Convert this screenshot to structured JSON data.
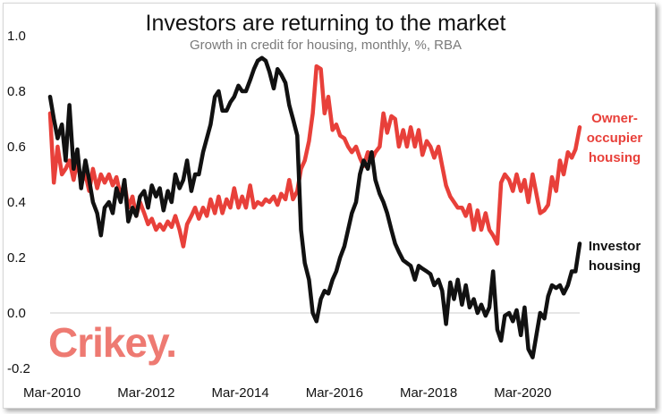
{
  "chart_data": {
    "type": "line",
    "title": "Investors are returning to the market",
    "subtitle": "Growth in credit for housing, monthly, %, RBA",
    "xlabel": "",
    "ylabel": "",
    "ylim": [
      -0.2,
      1.0
    ],
    "y_ticks": [
      "1.0",
      "0.8",
      "0.6",
      "0.4",
      "0.2",
      "0.0",
      "-0.2"
    ],
    "y_tick_values": [
      1.0,
      0.8,
      0.6,
      0.4,
      0.2,
      0.0,
      -0.2
    ],
    "xlim": [
      2010.17,
      2021.08
    ],
    "x_ticks": [
      "Mar-2010",
      "Mar-2012",
      "Mar-2014",
      "Mar-2016",
      "Mar-2018",
      "Mar-2020"
    ],
    "x_tick_values": [
      2010.17,
      2012.17,
      2014.17,
      2016.17,
      2018.17,
      2020.17
    ],
    "grid": false,
    "series": [
      {
        "name": "Owner-occupier housing",
        "label_lines": [
          "Owner-",
          "occupier",
          "housing"
        ],
        "color": "#e8403a",
        "points": [
          [
            2010.17,
            0.72
          ],
          [
            2010.25,
            0.47
          ],
          [
            2010.33,
            0.6
          ],
          [
            2010.42,
            0.5
          ],
          [
            2010.5,
            0.52
          ],
          [
            2010.58,
            0.55
          ],
          [
            2010.67,
            0.48
          ],
          [
            2010.75,
            0.55
          ],
          [
            2010.83,
            0.47
          ],
          [
            2010.92,
            0.5
          ],
          [
            2011.0,
            0.44
          ],
          [
            2011.08,
            0.52
          ],
          [
            2011.17,
            0.45
          ],
          [
            2011.25,
            0.5
          ],
          [
            2011.33,
            0.47
          ],
          [
            2011.42,
            0.5
          ],
          [
            2011.5,
            0.46
          ],
          [
            2011.58,
            0.49
          ],
          [
            2011.67,
            0.42
          ],
          [
            2011.75,
            0.47
          ],
          [
            2011.83,
            0.38
          ],
          [
            2011.92,
            0.42
          ],
          [
            2012.0,
            0.35
          ],
          [
            2012.08,
            0.4
          ],
          [
            2012.17,
            0.36
          ],
          [
            2012.25,
            0.32
          ],
          [
            2012.33,
            0.34
          ],
          [
            2012.42,
            0.3
          ],
          [
            2012.5,
            0.32
          ],
          [
            2012.58,
            0.3
          ],
          [
            2012.67,
            0.33
          ],
          [
            2012.75,
            0.31
          ],
          [
            2012.83,
            0.35
          ],
          [
            2012.92,
            0.3
          ],
          [
            2013.0,
            0.24
          ],
          [
            2013.08,
            0.32
          ],
          [
            2013.17,
            0.35
          ],
          [
            2013.25,
            0.38
          ],
          [
            2013.33,
            0.34
          ],
          [
            2013.42,
            0.38
          ],
          [
            2013.5,
            0.35
          ],
          [
            2013.58,
            0.41
          ],
          [
            2013.67,
            0.36
          ],
          [
            2013.75,
            0.42
          ],
          [
            2013.83,
            0.36
          ],
          [
            2013.92,
            0.41
          ],
          [
            2014.0,
            0.38
          ],
          [
            2014.08,
            0.45
          ],
          [
            2014.17,
            0.38
          ],
          [
            2014.25,
            0.42
          ],
          [
            2014.33,
            0.38
          ],
          [
            2014.42,
            0.46
          ],
          [
            2014.5,
            0.38
          ],
          [
            2014.58,
            0.4
          ],
          [
            2014.67,
            0.39
          ],
          [
            2014.75,
            0.41
          ],
          [
            2014.83,
            0.4
          ],
          [
            2014.92,
            0.42
          ],
          [
            2015.0,
            0.39
          ],
          [
            2015.08,
            0.43
          ],
          [
            2015.17,
            0.41
          ],
          [
            2015.25,
            0.48
          ],
          [
            2015.33,
            0.41
          ],
          [
            2015.42,
            0.44
          ],
          [
            2015.5,
            0.52
          ],
          [
            2015.58,
            0.55
          ],
          [
            2015.67,
            0.62
          ],
          [
            2015.75,
            0.72
          ],
          [
            2015.83,
            0.89
          ],
          [
            2015.92,
            0.88
          ],
          [
            2016.0,
            0.72
          ],
          [
            2016.08,
            0.78
          ],
          [
            2016.17,
            0.66
          ],
          [
            2016.25,
            0.68
          ],
          [
            2016.33,
            0.64
          ],
          [
            2016.42,
            0.63
          ],
          [
            2016.5,
            0.6
          ],
          [
            2016.58,
            0.58
          ],
          [
            2016.67,
            0.6
          ],
          [
            2016.75,
            0.56
          ],
          [
            2016.83,
            0.53
          ],
          [
            2016.92,
            0.58
          ],
          [
            2017.0,
            0.55
          ],
          [
            2017.08,
            0.58
          ],
          [
            2017.17,
            0.6
          ],
          [
            2017.25,
            0.72
          ],
          [
            2017.33,
            0.65
          ],
          [
            2017.42,
            0.71
          ],
          [
            2017.5,
            0.7
          ],
          [
            2017.58,
            0.6
          ],
          [
            2017.67,
            0.66
          ],
          [
            2017.75,
            0.6
          ],
          [
            2017.83,
            0.67
          ],
          [
            2017.92,
            0.6
          ],
          [
            2018.0,
            0.66
          ],
          [
            2018.08,
            0.57
          ],
          [
            2018.17,
            0.62
          ],
          [
            2018.25,
            0.6
          ],
          [
            2018.33,
            0.56
          ],
          [
            2018.42,
            0.6
          ],
          [
            2018.5,
            0.53
          ],
          [
            2018.58,
            0.46
          ],
          [
            2018.67,
            0.42
          ],
          [
            2018.75,
            0.4
          ],
          [
            2018.83,
            0.38
          ],
          [
            2018.92,
            0.38
          ],
          [
            2019.0,
            0.35
          ],
          [
            2019.08,
            0.39
          ],
          [
            2019.17,
            0.3
          ],
          [
            2019.25,
            0.37
          ],
          [
            2019.33,
            0.3
          ],
          [
            2019.42,
            0.36
          ],
          [
            2019.5,
            0.3
          ],
          [
            2019.58,
            0.28
          ],
          [
            2019.67,
            0.25
          ],
          [
            2019.75,
            0.47
          ],
          [
            2019.83,
            0.5
          ],
          [
            2019.92,
            0.48
          ],
          [
            2020.0,
            0.44
          ],
          [
            2020.08,
            0.5
          ],
          [
            2020.17,
            0.44
          ],
          [
            2020.25,
            0.48
          ],
          [
            2020.33,
            0.4
          ],
          [
            2020.42,
            0.5
          ],
          [
            2020.5,
            0.43
          ],
          [
            2020.58,
            0.36
          ],
          [
            2020.67,
            0.37
          ],
          [
            2020.75,
            0.39
          ],
          [
            2020.83,
            0.49
          ],
          [
            2020.92,
            0.44
          ],
          [
            2021.0,
            0.55
          ],
          [
            2021.08,
            0.5
          ],
          [
            2021.17,
            0.58
          ],
          [
            2021.25,
            0.56
          ],
          [
            2021.33,
            0.59
          ],
          [
            2021.42,
            0.67
          ]
        ]
      },
      {
        "name": "Investor housing",
        "label_lines": [
          "Investor",
          "housing"
        ],
        "color": "#111111",
        "points": [
          [
            2010.17,
            0.78
          ],
          [
            2010.25,
            0.7
          ],
          [
            2010.33,
            0.63
          ],
          [
            2010.42,
            0.68
          ],
          [
            2010.5,
            0.55
          ],
          [
            2010.58,
            0.75
          ],
          [
            2010.67,
            0.52
          ],
          [
            2010.75,
            0.59
          ],
          [
            2010.83,
            0.45
          ],
          [
            2010.92,
            0.55
          ],
          [
            2011.0,
            0.48
          ],
          [
            2011.08,
            0.4
          ],
          [
            2011.17,
            0.36
          ],
          [
            2011.25,
            0.28
          ],
          [
            2011.33,
            0.38
          ],
          [
            2011.42,
            0.4
          ],
          [
            2011.5,
            0.36
          ],
          [
            2011.58,
            0.45
          ],
          [
            2011.67,
            0.4
          ],
          [
            2011.75,
            0.48
          ],
          [
            2011.83,
            0.33
          ],
          [
            2011.92,
            0.38
          ],
          [
            2012.0,
            0.35
          ],
          [
            2012.08,
            0.42
          ],
          [
            2012.17,
            0.44
          ],
          [
            2012.25,
            0.38
          ],
          [
            2012.33,
            0.46
          ],
          [
            2012.42,
            0.42
          ],
          [
            2012.5,
            0.45
          ],
          [
            2012.58,
            0.37
          ],
          [
            2012.67,
            0.44
          ],
          [
            2012.75,
            0.4
          ],
          [
            2012.83,
            0.5
          ],
          [
            2012.92,
            0.45
          ],
          [
            2013.0,
            0.48
          ],
          [
            2013.08,
            0.55
          ],
          [
            2013.17,
            0.44
          ],
          [
            2013.25,
            0.5
          ],
          [
            2013.33,
            0.5
          ],
          [
            2013.42,
            0.58
          ],
          [
            2013.5,
            0.63
          ],
          [
            2013.58,
            0.68
          ],
          [
            2013.67,
            0.78
          ],
          [
            2013.75,
            0.8
          ],
          [
            2013.83,
            0.73
          ],
          [
            2013.92,
            0.73
          ],
          [
            2014.0,
            0.76
          ],
          [
            2014.08,
            0.78
          ],
          [
            2014.17,
            0.82
          ],
          [
            2014.25,
            0.8
          ],
          [
            2014.33,
            0.8
          ],
          [
            2014.42,
            0.84
          ],
          [
            2014.5,
            0.88
          ],
          [
            2014.58,
            0.91
          ],
          [
            2014.67,
            0.92
          ],
          [
            2014.75,
            0.91
          ],
          [
            2014.83,
            0.87
          ],
          [
            2014.92,
            0.81
          ],
          [
            2015.0,
            0.88
          ],
          [
            2015.08,
            0.86
          ],
          [
            2015.17,
            0.83
          ],
          [
            2015.25,
            0.75
          ],
          [
            2015.33,
            0.7
          ],
          [
            2015.42,
            0.64
          ],
          [
            2015.5,
            0.3
          ],
          [
            2015.58,
            0.18
          ],
          [
            2015.67,
            0.12
          ],
          [
            2015.75,
            0.0
          ],
          [
            2015.83,
            -0.03
          ],
          [
            2015.92,
            0.05
          ],
          [
            2016.0,
            0.08
          ],
          [
            2016.08,
            0.07
          ],
          [
            2016.17,
            0.12
          ],
          [
            2016.25,
            0.15
          ],
          [
            2016.33,
            0.2
          ],
          [
            2016.42,
            0.24
          ],
          [
            2016.5,
            0.3
          ],
          [
            2016.58,
            0.36
          ],
          [
            2016.67,
            0.4
          ],
          [
            2016.75,
            0.5
          ],
          [
            2016.83,
            0.55
          ],
          [
            2016.92,
            0.52
          ],
          [
            2017.0,
            0.58
          ],
          [
            2017.08,
            0.48
          ],
          [
            2017.17,
            0.43
          ],
          [
            2017.25,
            0.4
          ],
          [
            2017.33,
            0.36
          ],
          [
            2017.42,
            0.3
          ],
          [
            2017.5,
            0.25
          ],
          [
            2017.58,
            0.22
          ],
          [
            2017.67,
            0.19
          ],
          [
            2017.75,
            0.18
          ],
          [
            2017.83,
            0.17
          ],
          [
            2017.92,
            0.12
          ],
          [
            2018.0,
            0.17
          ],
          [
            2018.08,
            0.16
          ],
          [
            2018.17,
            0.15
          ],
          [
            2018.25,
            0.14
          ],
          [
            2018.33,
            0.1
          ],
          [
            2018.42,
            0.12
          ],
          [
            2018.5,
            0.08
          ],
          [
            2018.58,
            -0.04
          ],
          [
            2018.67,
            0.11
          ],
          [
            2018.75,
            0.05
          ],
          [
            2018.83,
            0.12
          ],
          [
            2018.92,
            0.03
          ],
          [
            2019.0,
            0.1
          ],
          [
            2019.08,
            0.02
          ],
          [
            2019.17,
            0.05
          ],
          [
            2019.25,
            0.0
          ],
          [
            2019.33,
            0.03
          ],
          [
            2019.42,
            -0.01
          ],
          [
            2019.5,
            0.02
          ],
          [
            2019.58,
            0.15
          ],
          [
            2019.67,
            -0.06
          ],
          [
            2019.75,
            -0.1
          ],
          [
            2019.83,
            -0.01
          ],
          [
            2019.92,
            0.0
          ],
          [
            2020.0,
            -0.03
          ],
          [
            2020.08,
            0.01
          ],
          [
            2020.17,
            -0.08
          ],
          [
            2020.25,
            0.02
          ],
          [
            2020.33,
            -0.13
          ],
          [
            2020.42,
            -0.16
          ],
          [
            2020.5,
            -0.08
          ],
          [
            2020.58,
            0.0
          ],
          [
            2020.67,
            -0.02
          ],
          [
            2020.75,
            0.06
          ],
          [
            2020.83,
            0.1
          ],
          [
            2020.92,
            0.09
          ],
          [
            2021.0,
            0.1
          ],
          [
            2021.08,
            0.07
          ],
          [
            2021.17,
            0.1
          ],
          [
            2021.25,
            0.15
          ],
          [
            2021.33,
            0.15
          ],
          [
            2021.42,
            0.25
          ]
        ]
      }
    ],
    "logo_text": "Crikey."
  }
}
